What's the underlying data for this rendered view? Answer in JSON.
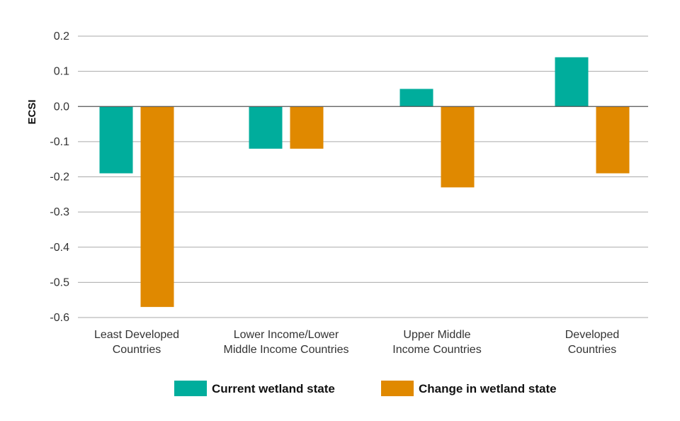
{
  "chart_data": {
    "type": "bar",
    "title": "",
    "xlabel": "",
    "ylabel": "ECSI",
    "ylim": [
      -0.6,
      0.2
    ],
    "yticks": [
      "0.2",
      "0.1",
      "0.0",
      "-0.1",
      "-0.2",
      "-0.3",
      "-0.4",
      "-0.5",
      "-0.6"
    ],
    "ytick_values": [
      0.2,
      0.1,
      0.0,
      -0.1,
      -0.2,
      -0.3,
      -0.4,
      -0.5,
      -0.6
    ],
    "grid": true,
    "legend_position": "bottom",
    "categories": [
      [
        "Least Developed",
        "Countries"
      ],
      [
        "Lower Income/Lower",
        "Middle Income Countries"
      ],
      [
        "Upper Middle",
        "Income Countries"
      ],
      [
        "Developed",
        "Countries"
      ]
    ],
    "series": [
      {
        "name": "Current wetland state",
        "color": "#00ad9c",
        "values": [
          -0.19,
          -0.12,
          0.05,
          0.14
        ]
      },
      {
        "name": "Change in wetland state",
        "color": "#e08900",
        "values": [
          -0.57,
          -0.12,
          -0.23,
          -0.19
        ]
      }
    ]
  }
}
